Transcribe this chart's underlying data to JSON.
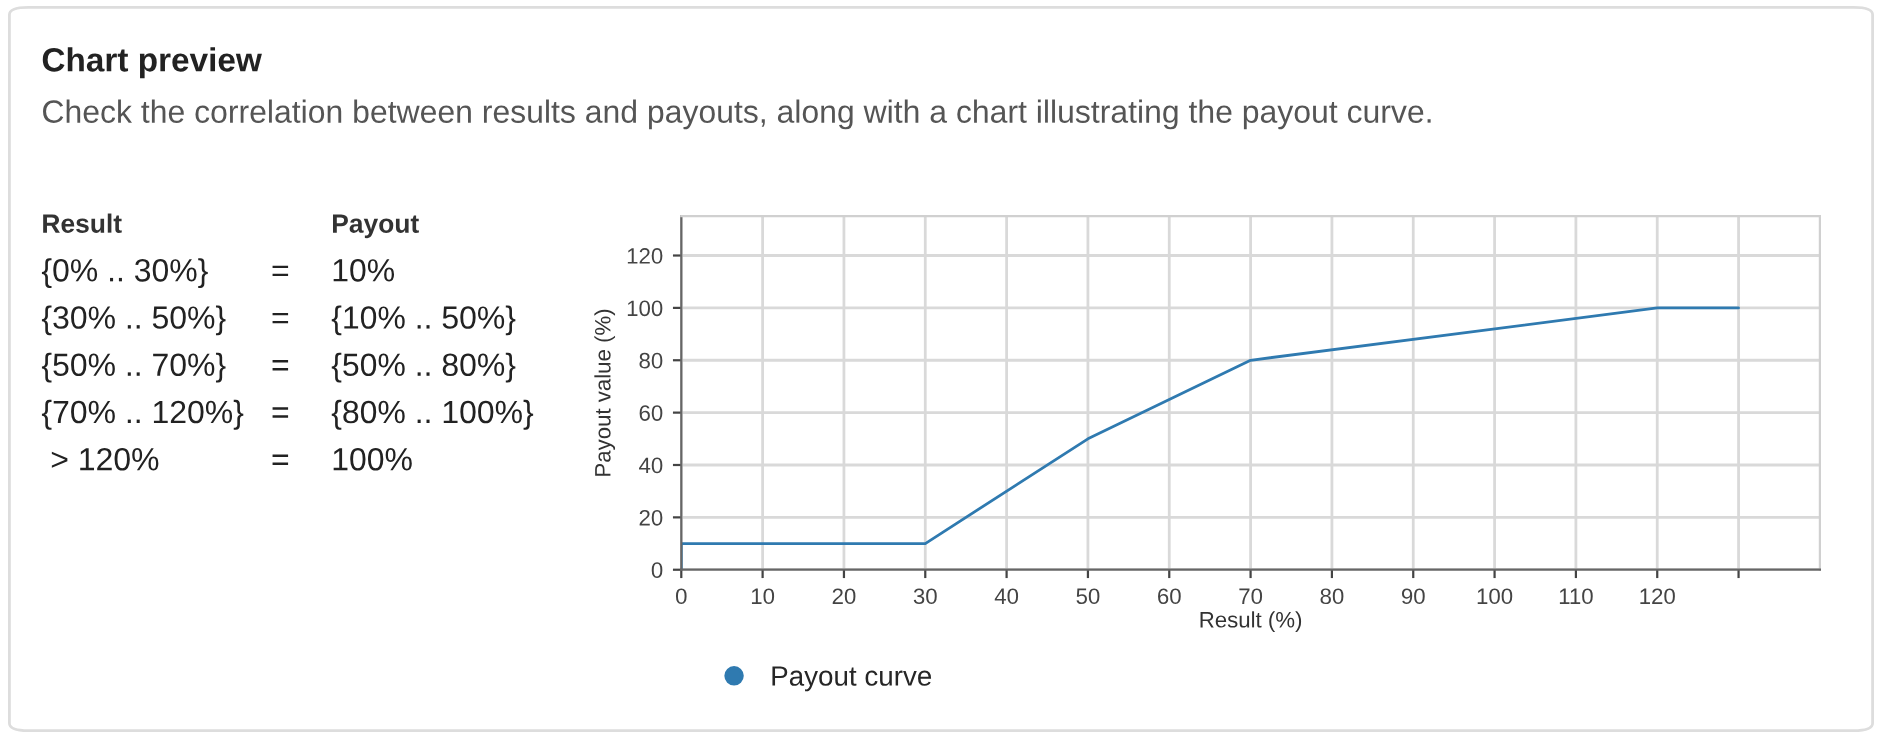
{
  "chart_data": {
    "type": "line",
    "title": "Chart preview",
    "subtitle": "Check the correlation between results and payouts, along with a chart illustrating the payout curve.",
    "xlabel": "Result (%)",
    "ylabel": "Payout value (%)",
    "annotations": [
      "Result",
      "Payout",
      "{0% .. 30%}",
      "=",
      "10%",
      "{30% .. 50%}",
      "=",
      "{10% .. 50%}",
      "{50% .. 70%}",
      "=",
      "{50% .. 80%}",
      "{70% .. 120%}",
      "=",
      "{80% .. 100%}",
      " > 120%",
      "=",
      "100%"
    ],
    "series": [
      {
        "name": "Payout curve",
        "color": "#2f7ab0",
        "x": [
          0,
          0,
          30,
          50,
          70,
          120,
          130
        ],
        "values": [
          0,
          10,
          10,
          50,
          80,
          100,
          100
        ]
      }
    ],
    "xlim": [
      0,
      140
    ],
    "xticks": [
      0,
      10,
      20,
      30,
      40,
      50,
      60,
      70,
      80,
      90,
      100,
      110,
      120,
      {
        "value": 130,
        "label": null
      }
    ],
    "ylim": [
      0,
      135
    ],
    "yticks": [
      0,
      20,
      40,
      60,
      80,
      100,
      120
    ],
    "grid": true,
    "legend": "bottom",
    "marker": "none",
    "line_style": "solid"
  }
}
